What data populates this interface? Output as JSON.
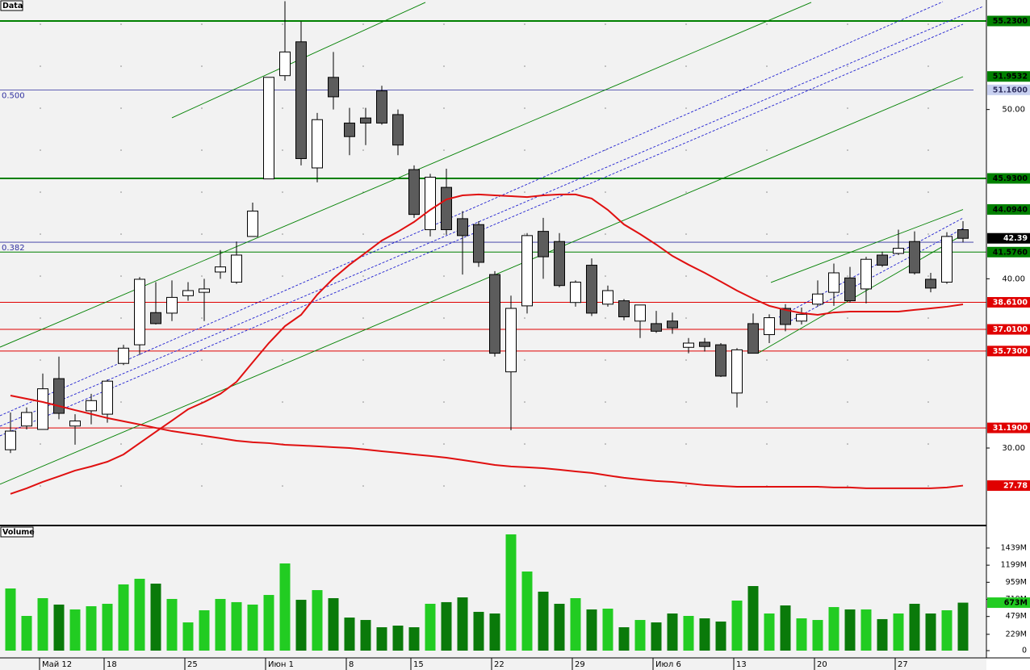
{
  "chart_data": [
    {
      "type": "candlestick",
      "title": "Data",
      "categories": [
        null,
        null,
        "Май 12",
        null,
        null,
        null,
        "18",
        null,
        null,
        null,
        null,
        "25",
        null,
        null,
        null,
        null,
        "Июн 1",
        null,
        null,
        null,
        null,
        "8",
        null,
        null,
        null,
        "15",
        null,
        null,
        null,
        null,
        "22",
        null,
        null,
        null,
        null,
        "29",
        null,
        null,
        null,
        null,
        "Июл 6",
        null,
        null,
        null,
        null,
        "13",
        null,
        null,
        null,
        null,
        "20",
        null,
        null,
        null,
        null,
        "27",
        null,
        null,
        null,
        null
      ],
      "open": [
        29.9,
        31.3,
        31.1,
        34.1,
        31.3,
        32.2,
        32.0,
        35.0,
        36.1,
        38.0,
        37.97,
        39.0,
        39.2,
        40.4,
        39.8,
        42.5,
        45.9,
        52.0,
        54.0,
        46.55,
        51.9,
        49.2,
        49.5,
        51.1,
        49.7,
        46.45,
        42.9,
        45.4,
        43.55,
        43.2,
        40.25,
        34.5,
        38.4,
        42.8,
        42.2,
        38.6,
        40.8,
        38.5,
        38.7,
        37.5,
        37.35,
        37.5,
        35.95,
        36.25,
        36.1,
        33.25,
        37.35,
        36.7,
        38.25,
        37.5,
        38.5,
        39.2,
        40.05,
        39.4,
        41.4,
        41.5,
        42.2,
        39.97,
        39.8,
        42.9
      ],
      "high": [
        32.1,
        32.4,
        34.4,
        35.4,
        32.0,
        33.2,
        34.05,
        36.1,
        40.1,
        39.8,
        39.9,
        39.8,
        40.0,
        41.7,
        42.2,
        44.5,
        51.9,
        56.4,
        55.2,
        49.8,
        53.4,
        50.1,
        50.1,
        51.4,
        50.0,
        46.7,
        46.2,
        46.5,
        44.0,
        43.4,
        40.45,
        39.0,
        42.7,
        43.6,
        42.7,
        39.9,
        41.2,
        39.6,
        38.8,
        38.45,
        38.1,
        38.0,
        36.5,
        36.5,
        36.2,
        35.9,
        37.95,
        37.9,
        38.5,
        38.3,
        39.9,
        40.9,
        40.7,
        41.3,
        41.6,
        42.9,
        42.8,
        40.35,
        42.75,
        43.4
      ],
      "low": [
        29.7,
        31.1,
        31.1,
        31.7,
        30.2,
        31.4,
        31.5,
        34.9,
        35.5,
        37.3,
        37.5,
        38.7,
        37.5,
        40.0,
        39.7,
        42.5,
        45.9,
        51.7,
        46.7,
        45.7,
        50.0,
        47.3,
        47.9,
        49.1,
        47.3,
        43.6,
        42.5,
        42.6,
        40.25,
        40.7,
        35.4,
        31.05,
        37.95,
        40.0,
        39.5,
        38.35,
        37.8,
        38.35,
        37.55,
        36.5,
        36.8,
        36.75,
        35.6,
        35.7,
        34.2,
        32.4,
        35.6,
        36.2,
        36.9,
        37.3,
        38.35,
        38.4,
        38.6,
        38.55,
        40.7,
        41.4,
        40.25,
        39.2,
        39.7,
        42.15
      ],
      "close": [
        31.0,
        32.1,
        33.5,
        32.05,
        31.6,
        32.8,
        33.95,
        35.9,
        39.97,
        37.35,
        38.9,
        39.3,
        39.4,
        40.7,
        41.4,
        44.0,
        51.9,
        53.4,
        47.1,
        49.4,
        50.75,
        48.4,
        49.2,
        49.2,
        47.9,
        43.8,
        46.0,
        42.9,
        42.55,
        40.97,
        35.6,
        38.25,
        42.55,
        41.3,
        39.6,
        39.8,
        37.97,
        39.3,
        37.75,
        38.45,
        36.9,
        37.1,
        36.2,
        36.0,
        34.25,
        35.8,
        35.6,
        37.7,
        37.3,
        37.9,
        39.1,
        40.35,
        38.7,
        41.15,
        40.8,
        41.8,
        40.35,
        39.45,
        42.5,
        42.39
      ],
      "up_color": "#ffffff",
      "down_color": "#5c5c5c",
      "ylim": [
        25.47,
        56.47
      ],
      "yticks": [
        {
          "value": 50,
          "label": "50.00"
        },
        {
          "value": 40,
          "label": "40.00"
        },
        {
          "value": 30,
          "label": "30.00"
        }
      ],
      "moving_averages": [
        {
          "color": "#e01010",
          "values": [
            27.29,
            27.62,
            28.0,
            28.33,
            28.67,
            28.91,
            29.19,
            29.62,
            30.29,
            30.96,
            31.62,
            32.29,
            32.72,
            33.2,
            33.91,
            35.06,
            36.2,
            37.2,
            37.87,
            39.06,
            40.02,
            40.83,
            41.54,
            42.26,
            42.78,
            43.36,
            44.07,
            44.69,
            44.93,
            44.98,
            44.93,
            44.88,
            44.83,
            44.93,
            44.98,
            44.98,
            44.74,
            44.07,
            43.21,
            42.64,
            42.02,
            41.35,
            40.83,
            40.35,
            39.83,
            39.3,
            38.83,
            38.4,
            38.16,
            37.97,
            37.87,
            38.01,
            38.06,
            38.06,
            38.06,
            38.06,
            38.16,
            38.25,
            38.35,
            38.49
          ]
        },
        {
          "color": "#e01010",
          "values": [
            33.1,
            32.91,
            32.72,
            32.48,
            32.24,
            32.01,
            31.77,
            31.58,
            31.39,
            31.19,
            31.0,
            30.86,
            30.72,
            30.58,
            30.43,
            30.34,
            30.29,
            30.19,
            30.15,
            30.1,
            30.05,
            30.0,
            29.91,
            29.81,
            29.72,
            29.62,
            29.53,
            29.43,
            29.29,
            29.15,
            29.0,
            28.91,
            28.86,
            28.81,
            28.72,
            28.62,
            28.53,
            28.38,
            28.24,
            28.14,
            28.05,
            28.0,
            27.91,
            27.81,
            27.76,
            27.71,
            27.71,
            27.71,
            27.71,
            27.71,
            27.71,
            27.67,
            27.67,
            27.62,
            27.62,
            27.62,
            27.62,
            27.62,
            27.67,
            27.78
          ]
        }
      ],
      "levels": [
        {
          "value": 55.23,
          "label": "55.2300",
          "color": "#008000",
          "width": 2
        },
        {
          "value": 45.93,
          "label": "45.9300",
          "color": "#008000",
          "width": 2
        },
        {
          "value": 41.576,
          "label": "41.5760",
          "color": "#008000",
          "width": 1
        },
        {
          "value": 38.61,
          "label": "38.6100",
          "color": "#e00000",
          "width": 1
        },
        {
          "value": 37.01,
          "label": "37.0100",
          "color": "#e00000",
          "width": 1
        },
        {
          "value": 35.73,
          "label": "35.7300",
          "color": "#e00000",
          "width": 1
        },
        {
          "value": 31.19,
          "label": "31.1900",
          "color": "#e00000",
          "width": 1
        }
      ],
      "fib_levels": [
        {
          "value": 51.16,
          "label": "0.500",
          "price_label": "51.1600",
          "color": "#3030a0"
        },
        {
          "value": 42.16,
          "label": "0.382",
          "color": "#3030a0"
        }
      ],
      "price_markers": [
        {
          "value": 51.9532,
          "label": "51.9532",
          "color": "#008000"
        },
        {
          "value": 44.094,
          "label": "44.0940",
          "color": "#008000"
        },
        {
          "value": 42.39,
          "label": "42.39",
          "color": "#000000"
        },
        {
          "value": 27.78,
          "label": "27.78",
          "color": "#e00000"
        }
      ],
      "trend_lines": [
        {
          "i1": 10,
          "v1": 49.51,
          "i2": 25.7,
          "v2": 56.33,
          "color": "#008000",
          "dashed": false
        },
        {
          "i1": -0.65,
          "v1": 35.96,
          "i2": 49.6,
          "v2": 56.33,
          "color": "#008000",
          "dashed": false
        },
        {
          "i1": -0.65,
          "v1": 27.86,
          "i2": 59,
          "v2": 51.94,
          "color": "#008000",
          "dashed": false
        },
        {
          "i1": 47.1,
          "v1": 39.78,
          "i2": 59,
          "v2": 44.09,
          "color": "#008000",
          "dashed": false
        },
        {
          "i1": 46.35,
          "v1": 35.63,
          "i2": 59,
          "v2": 42.6,
          "color": "#008000",
          "dashed": false
        },
        {
          "i1": -0.65,
          "v1": 31.91,
          "i2": 57.75,
          "v2": 56.37,
          "color": "#2020d0",
          "dashed": true
        },
        {
          "i1": -0.65,
          "v1": 31.29,
          "i2": 60.25,
          "v2": 56.09,
          "color": "#2020d0",
          "dashed": true
        },
        {
          "i1": -0.65,
          "v1": 30.72,
          "i2": 59,
          "v2": 55.04,
          "color": "#2020d0",
          "dashed": true
        },
        {
          "i1": 47.6,
          "v1": 37.73,
          "i2": 59,
          "v2": 43.59,
          "color": "#2020d0",
          "dashed": true
        },
        {
          "i1": 48.1,
          "v1": 37.4,
          "i2": 59,
          "v2": 42.97,
          "color": "#2020d0",
          "dashed": true
        }
      ]
    },
    {
      "type": "bar",
      "title": "Volume",
      "values": [
        872,
        487,
        736,
        646,
        578,
        623,
        657,
        929,
        1008,
        940,
        725,
        396,
        566,
        725,
        680,
        646,
        781,
        1223,
        713,
        849,
        736,
        464,
        430,
        328,
        351,
        328,
        657,
        680,
        747,
        544,
        521,
        1631,
        1110,
        827,
        657,
        736,
        578,
        589,
        328,
        430,
        396,
        521,
        487,
        453,
        408,
        702,
        906,
        521,
        634,
        453,
        430,
        611,
        578,
        578,
        442,
        521,
        657,
        521,
        566,
        673
      ],
      "up_color": "#22cc22",
      "down_color": "#0a7a0a",
      "ylim": [
        0,
        1744
      ],
      "yticks": [
        0,
        {
          "value": 229,
          "label": "229M"
        },
        {
          "value": 479,
          "label": "479M"
        },
        {
          "value": 719,
          "label": "719M"
        },
        {
          "value": 959,
          "label": "959M"
        },
        {
          "value": 1199,
          "label": "1199M"
        },
        {
          "value": 1439,
          "label": "1439M"
        }
      ],
      "last_marker": {
        "value": 673,
        "label": "673M",
        "color": "#22cc22"
      }
    }
  ]
}
